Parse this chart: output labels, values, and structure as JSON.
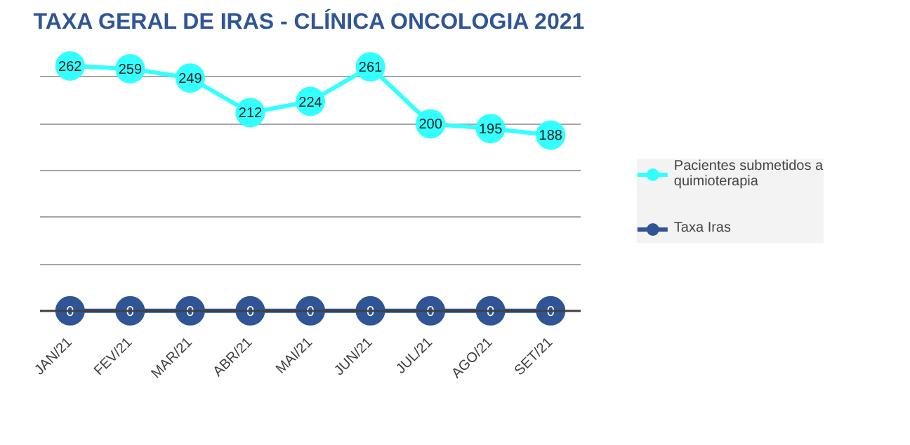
{
  "chart_data": {
    "type": "line",
    "title": "TAXA GERAL DE IRAS - CLÍNICA ONCOLOGIA 2021",
    "categories": [
      "JAN/21",
      "FEV/21",
      "MAR/21",
      "ABR/21",
      "MAI/21",
      "JUN/21",
      "JUL/21",
      "AGO/21",
      "SET/21"
    ],
    "series": [
      {
        "name": "Pacientes submetidos a quimioterapia",
        "color": "#33ffff",
        "values": [
          262,
          259,
          249,
          212,
          224,
          261,
          200,
          195,
          188
        ]
      },
      {
        "name": "Taxa Iras",
        "color": "#2f5597",
        "values": [
          0,
          0,
          0,
          0,
          0,
          0,
          0,
          0,
          0
        ]
      }
    ],
    "yticks": [
      {
        "value": 0,
        "label": null
      },
      {
        "value": 50,
        "label": null
      },
      {
        "value": 100,
        "label": null
      },
      {
        "value": 150,
        "label": null
      },
      {
        "value": 200,
        "label": null
      },
      {
        "value": 250,
        "label": null
      }
    ],
    "tick_labels": "x",
    "grid": "y",
    "legend": "right",
    "marker": "circle",
    "line_style": "solid",
    "data_labels": true
  }
}
